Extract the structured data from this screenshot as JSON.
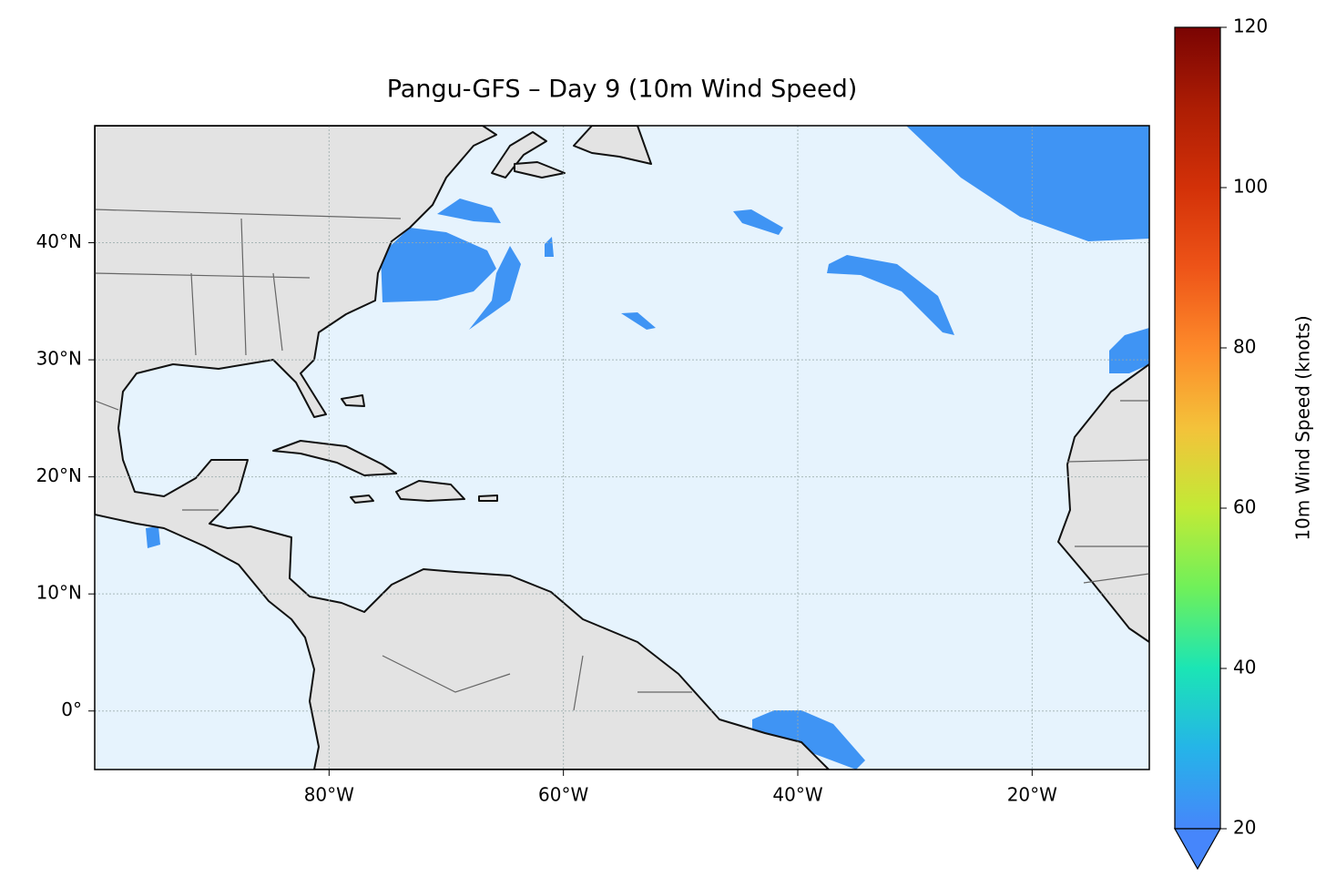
{
  "chart_data": {
    "type": "map",
    "title": "Pangu-GFS – Day 9 (10m Wind Speed)",
    "xlim": [
      -100,
      -10
    ],
    "ylim": [
      -5,
      50
    ],
    "xticks": [
      {
        "value": -80,
        "label": "80°W"
      },
      {
        "value": -60,
        "label": "60°W"
      },
      {
        "value": -40,
        "label": "40°W"
      },
      {
        "value": -20,
        "label": "20°W"
      }
    ],
    "yticks": [
      {
        "value": 0,
        "label": "0°"
      },
      {
        "value": 10,
        "label": "10°N"
      },
      {
        "value": 20,
        "label": "20°N"
      },
      {
        "value": 30,
        "label": "30°N"
      },
      {
        "value": 40,
        "label": "40°N"
      }
    ],
    "grid": true,
    "colorbar": {
      "label": "10m Wind Speed (knots)",
      "lim": [
        20,
        120
      ],
      "ticks": [
        20,
        40,
        60,
        80,
        100,
        120
      ],
      "extend": "min"
    }
  }
}
